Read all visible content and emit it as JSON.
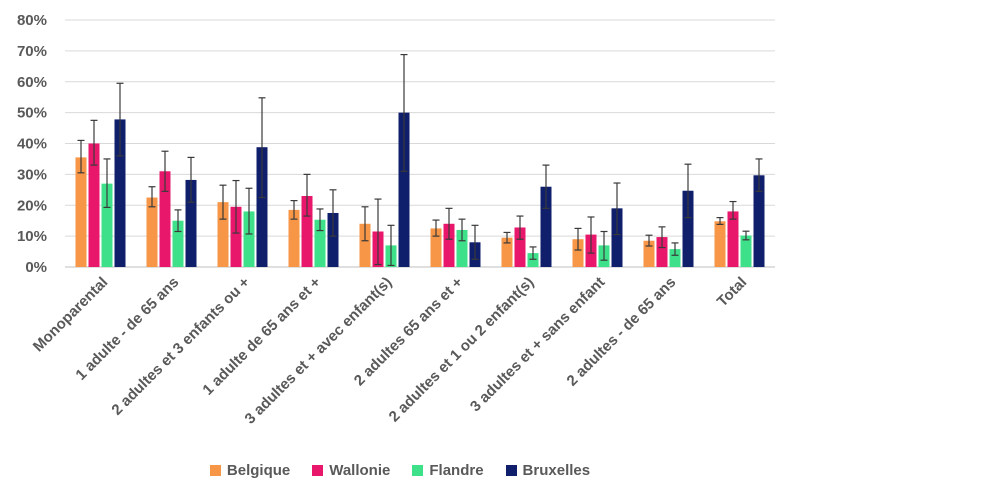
{
  "chart_data": {
    "type": "bar",
    "title": "",
    "xlabel": "",
    "ylabel": "",
    "ylim": [
      0,
      0.8
    ],
    "y_ticks": [
      "0%",
      "10%",
      "20%",
      "30%",
      "40%",
      "50%",
      "60%",
      "70%",
      "80%"
    ],
    "grid": true,
    "legend_position": "bottom",
    "categories": [
      "Monoparental",
      "1 adulte - de 65 ans",
      "2 adultes et 3 enfants ou +",
      "1 adulte de 65 ans et +",
      "3 adultes et + avec enfant(s)",
      "2 adultes 65 ans et +",
      "2 adultes et 1 ou 2 enfant(s)",
      "3 adultes et + sans enfant",
      "2 adultes - de 65 ans",
      "Total"
    ],
    "series": [
      {
        "name": "Belgique",
        "color": "#F79646",
        "values": [
          0.355,
          0.225,
          0.21,
          0.185,
          0.14,
          0.125,
          0.095,
          0.09,
          0.085,
          0.148
        ],
        "error_low": [
          0.305,
          0.195,
          0.155,
          0.155,
          0.085,
          0.1,
          0.078,
          0.055,
          0.068,
          0.138
        ],
        "error_high": [
          0.41,
          0.26,
          0.265,
          0.215,
          0.195,
          0.152,
          0.112,
          0.125,
          0.103,
          0.16
        ]
      },
      {
        "name": "Wallonie",
        "color": "#E8176B",
        "values": [
          0.4,
          0.31,
          0.195,
          0.23,
          0.115,
          0.14,
          0.128,
          0.105,
          0.097,
          0.18
        ],
        "error_low": [
          0.33,
          0.245,
          0.11,
          0.165,
          0.008,
          0.09,
          0.09,
          0.045,
          0.063,
          0.155
        ],
        "error_high": [
          0.475,
          0.375,
          0.28,
          0.3,
          0.22,
          0.19,
          0.165,
          0.162,
          0.13,
          0.212
        ]
      },
      {
        "name": "Flandre",
        "color": "#3FE08A",
        "values": [
          0.27,
          0.15,
          0.18,
          0.153,
          0.07,
          0.12,
          0.045,
          0.07,
          0.058,
          0.102
        ],
        "error_low": [
          0.193,
          0.115,
          0.107,
          0.118,
          0.005,
          0.085,
          0.025,
          0.022,
          0.038,
          0.088
        ],
        "error_high": [
          0.35,
          0.185,
          0.255,
          0.188,
          0.135,
          0.155,
          0.065,
          0.115,
          0.078,
          0.116
        ]
      },
      {
        "name": "Bruxelles",
        "color": "#0F1F6B",
        "values": [
          0.478,
          0.282,
          0.388,
          0.175,
          0.5,
          0.08,
          0.26,
          0.19,
          0.247,
          0.297
        ],
        "error_low": [
          0.36,
          0.21,
          0.225,
          0.1,
          0.31,
          0.025,
          0.19,
          0.105,
          0.16,
          0.245
        ],
        "error_high": [
          0.595,
          0.355,
          0.548,
          0.25,
          0.688,
          0.135,
          0.33,
          0.272,
          0.333,
          0.35
        ]
      }
    ]
  }
}
